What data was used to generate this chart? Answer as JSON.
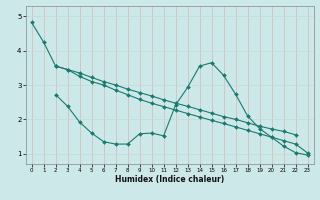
{
  "title": "",
  "xlabel": "Humidex (Indice chaleur)",
  "bg_color": "#cce8e8",
  "grid_color": "#b0d0d0",
  "line_color": "#1a7a6e",
  "xlim": [
    -0.5,
    23.5
  ],
  "ylim": [
    0.7,
    5.3
  ],
  "yticks": [
    1,
    2,
    3,
    4,
    5
  ],
  "xticks": [
    0,
    1,
    2,
    3,
    4,
    5,
    6,
    7,
    8,
    9,
    10,
    11,
    12,
    13,
    14,
    15,
    16,
    17,
    18,
    19,
    20,
    21,
    22,
    23
  ],
  "line1_x": [
    0,
    1,
    2,
    3,
    4,
    5,
    6,
    7,
    8,
    9,
    10,
    11,
    12,
    13,
    14,
    15,
    16,
    17,
    18,
    19,
    20,
    21,
    22,
    23
  ],
  "line1_y": [
    4.82,
    4.25,
    3.55,
    3.45,
    3.25,
    3.1,
    3.0,
    2.85,
    2.72,
    2.58,
    2.47,
    2.37,
    2.27,
    2.17,
    2.07,
    1.97,
    1.88,
    1.78,
    1.68,
    1.58,
    1.48,
    1.38,
    1.28,
    1.02
  ],
  "line2_x": [
    2,
    3,
    4,
    5,
    6,
    7,
    8,
    9,
    10,
    11,
    12,
    13,
    14,
    15,
    16,
    17,
    18,
    19,
    20,
    21,
    22
  ],
  "line2_y": [
    3.55,
    3.45,
    3.35,
    3.22,
    3.1,
    3.0,
    2.88,
    2.78,
    2.68,
    2.57,
    2.47,
    2.38,
    2.28,
    2.18,
    2.08,
    2.0,
    1.9,
    1.8,
    1.72,
    1.65,
    1.55
  ],
  "line3_x": [
    2,
    3,
    4,
    5,
    6,
    7,
    8,
    9,
    10,
    11,
    12,
    13,
    14,
    15,
    16,
    17,
    18,
    19,
    20,
    21,
    22,
    23
  ],
  "line3_y": [
    2.72,
    2.38,
    1.92,
    1.6,
    1.35,
    1.28,
    1.28,
    1.58,
    1.6,
    1.52,
    2.42,
    2.93,
    3.55,
    3.65,
    3.28,
    2.73,
    2.1,
    1.73,
    1.48,
    1.22,
    1.03,
    0.96
  ]
}
